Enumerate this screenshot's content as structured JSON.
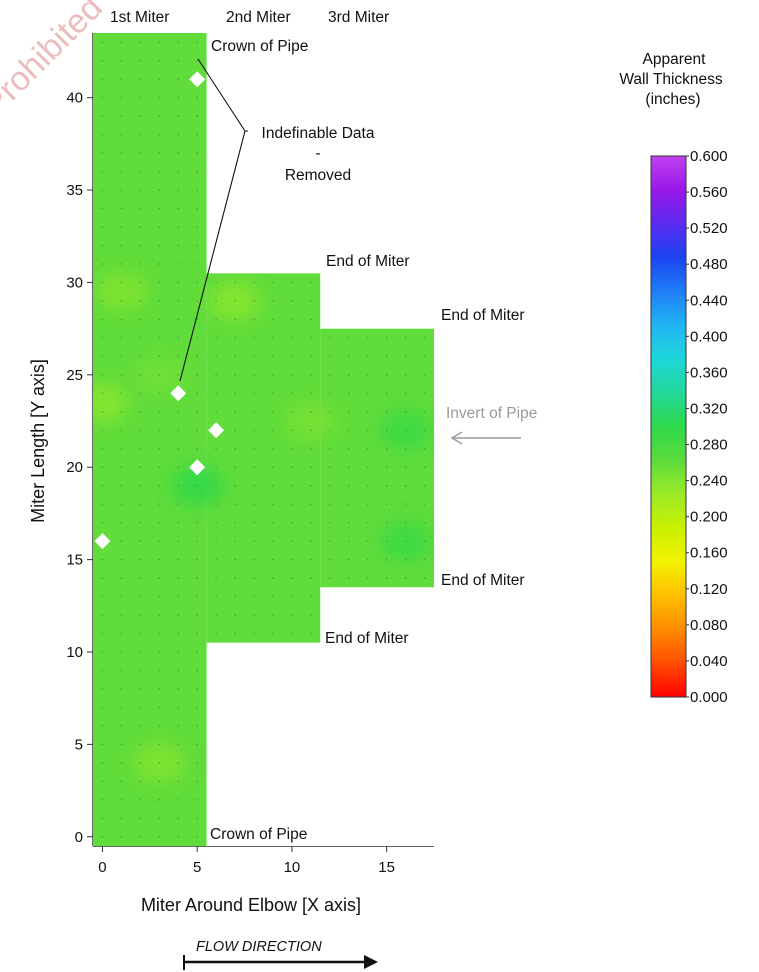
{
  "watermark": "Prohibited",
  "chart_data": {
    "type": "heatmap",
    "title": "",
    "xlabel": "Miter Around Elbow [X axis]",
    "ylabel": "Miter Length  [Y axis]",
    "xlim": [
      -0.5,
      17.5
    ],
    "ylim": [
      -0.5,
      43.5
    ],
    "xticks": [
      0,
      5,
      10,
      15
    ],
    "yticks": [
      0,
      5,
      10,
      15,
      20,
      25,
      30,
      35,
      40
    ],
    "miter_labels": [
      "1st Miter",
      "2nd Miter",
      "3rd Miter"
    ],
    "miters": [
      {
        "name": "1st Miter",
        "x_range": [
          -0.5,
          5.5
        ],
        "y_range": [
          -0.5,
          43.5
        ]
      },
      {
        "name": "2nd Miter",
        "x_range": [
          5.5,
          11.5
        ],
        "y_range": [
          10.5,
          30.5
        ]
      },
      {
        "name": "3rd Miter",
        "x_range": [
          11.5,
          17.5
        ],
        "y_range": [
          13.5,
          27.5
        ]
      }
    ],
    "base_value": 0.26,
    "variations": [
      {
        "x": 1,
        "y": 29.5,
        "value": 0.24
      },
      {
        "x": 7,
        "y": 29,
        "value": 0.235
      },
      {
        "x": 3,
        "y": 25,
        "value": 0.25
      },
      {
        "x": 5,
        "y": 19,
        "value": 0.3
      },
      {
        "x": 16,
        "y": 22,
        "value": 0.29
      },
      {
        "x": 16,
        "y": 16,
        "value": 0.29
      },
      {
        "x": 11,
        "y": 22.5,
        "value": 0.245
      },
      {
        "x": 0,
        "y": 23.5,
        "value": 0.235
      },
      {
        "x": 3,
        "y": 4,
        "value": 0.24
      }
    ],
    "removed_points": [
      {
        "x": 5,
        "y": 41
      },
      {
        "x": 4,
        "y": 24
      },
      {
        "x": 6,
        "y": 22
      },
      {
        "x": 5,
        "y": 20
      },
      {
        "x": 0,
        "y": 16
      }
    ],
    "annotations": {
      "crown_top": "Crown of Pipe",
      "crown_bottom": "Crown of Pipe",
      "indefinable_line1": "Indefinable Data",
      "indefinable_line2": "-",
      "indefinable_line3": "Removed",
      "end_of_miter_1": "End of Miter",
      "end_of_miter_2": "End of Miter",
      "end_of_miter_3": "End of Miter",
      "end_of_miter_4": "End of Miter",
      "invert_of_pipe": "Invert of Pipe",
      "flow_direction": "FLOW DIRECTION"
    },
    "colorbar": {
      "title_lines": [
        "Apparent",
        "Wall Thickness",
        "(inches)"
      ],
      "min": 0.0,
      "max": 0.6,
      "ticks": [
        "0.000",
        "0.040",
        "0.080",
        "0.120",
        "0.160",
        "0.200",
        "0.240",
        "0.280",
        "0.320",
        "0.360",
        "0.400",
        "0.440",
        "0.480",
        "0.520",
        "0.560",
        "0.600"
      ],
      "colors": [
        "#ff0000",
        "#ff4d00",
        "#ff8c00",
        "#ffbf00",
        "#f2f200",
        "#c8f000",
        "#9bea28",
        "#5cdb3c",
        "#2ed84a",
        "#22d89a",
        "#1ed6da",
        "#22b4f4",
        "#1f7df7",
        "#1b44f0",
        "#5b2af0",
        "#9a18e8",
        "#c040f0"
      ]
    },
    "grid": false,
    "legend": "right"
  }
}
